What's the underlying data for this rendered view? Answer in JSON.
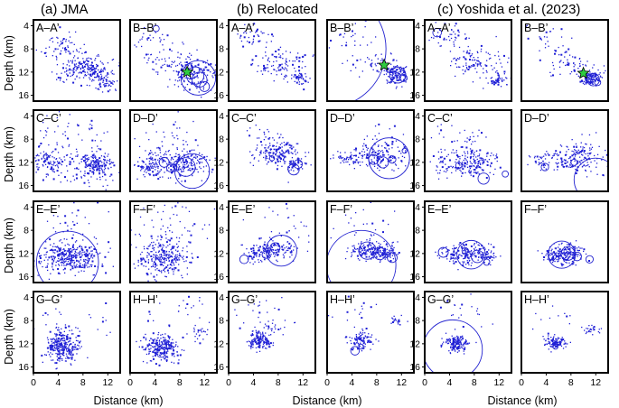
{
  "chart_data": {
    "type": "scatter",
    "columns": [
      {
        "title": "(a) JMA"
      },
      {
        "title": "(b) Relocated"
      },
      {
        "title": "(c) Yoshida et al. (2023)"
      }
    ],
    "rows": [
      {
        "left": "A–A’",
        "right": "B–B’"
      },
      {
        "left": "C–C’",
        "right": "D–D’"
      },
      {
        "left": "E–E’",
        "right": "F–F’"
      },
      {
        "left": "G–G’",
        "right": "H–H’"
      }
    ],
    "xlabel": "Distance (km)",
    "ylabel": "Depth (km)",
    "xlim": [
      0,
      14
    ],
    "ylim": [
      3,
      17
    ],
    "x_ticks": [
      0,
      4,
      8,
      12
    ],
    "y_ticks": [
      4,
      8,
      12,
      16
    ],
    "marker_color": "#1f1fd6",
    "star_color": "#2ecc40",
    "clusters": [
      [
        {
          "c": [
            {
              "x": 8.5,
              "y": 11.5,
              "sx": 2.2,
              "sy": 1.3,
              "n": 200
            },
            {
              "x": 4.5,
              "y": 7.5,
              "sx": 2,
              "sy": 1.2,
              "n": 60
            },
            {
              "x": 11,
              "y": 13.5,
              "sx": 1.2,
              "sy": 1,
              "n": 70
            }
          ],
          "r": [],
          "s": []
        },
        {
          "c": [
            {
              "x": 10,
              "y": 12.5,
              "sx": 1.8,
              "sy": 1.4,
              "n": 160
            },
            {
              "x": 6,
              "y": 10,
              "sx": 2.5,
              "sy": 1.5,
              "n": 60
            },
            {
              "x": 3,
              "y": 7,
              "sx": 1.5,
              "sy": 1.5,
              "n": 25
            }
          ],
          "r": [
            {
              "x": 11,
              "y": 13,
              "r": 2.8
            },
            {
              "x": 10.5,
              "y": 12.6,
              "r": 1.4
            },
            {
              "x": 11.2,
              "y": 13.3,
              "r": 1.2
            },
            {
              "x": 12,
              "y": 14.5,
              "r": 0.8
            },
            {
              "x": 4.2,
              "y": 4.5,
              "r": 0.5
            },
            {
              "x": 9.5,
              "y": 11.2,
              "r": 0.6
            }
          ],
          "s": [
            {
              "x": 9.2,
              "y": 12
            }
          ]
        },
        {
          "c": [
            {
              "x": 8.5,
              "y": 10.5,
              "sx": 2.3,
              "sy": 1.2,
              "n": 110
            },
            {
              "x": 4,
              "y": 6,
              "sx": 1.5,
              "sy": 1,
              "n": 40
            },
            {
              "x": 11.5,
              "y": 13,
              "sx": 1,
              "sy": 0.7,
              "n": 40
            }
          ],
          "r": [],
          "s": []
        },
        {
          "c": [
            {
              "x": 11,
              "y": 12.4,
              "sx": 0.9,
              "sy": 0.8,
              "n": 120
            },
            {
              "x": 8,
              "y": 10.5,
              "sx": 2,
              "sy": 1,
              "n": 50
            },
            {
              "x": 4,
              "y": 6,
              "sx": 2,
              "sy": 1.4,
              "n": 25
            }
          ],
          "r": [
            {
              "x": 11.4,
              "y": 12.5,
              "r": 1.3
            },
            {
              "x": 12.3,
              "y": 13,
              "r": 0.6
            },
            {
              "x": 0,
              "y": 8,
              "r": 9.5
            }
          ],
          "s": [
            {
              "x": 9.2,
              "y": 10.8
            }
          ]
        },
        {
          "c": [
            {
              "x": 8.5,
              "y": 10.5,
              "sx": 2.2,
              "sy": 1.3,
              "n": 110
            },
            {
              "x": 4,
              "y": 6,
              "sx": 1.5,
              "sy": 1,
              "n": 40
            },
            {
              "x": 11.8,
              "y": 13.3,
              "sx": 0.7,
              "sy": 0.6,
              "n": 45
            }
          ],
          "r": [
            {
              "x": 2,
              "y": 5.2,
              "r": 0.7
            }
          ],
          "s": []
        },
        {
          "c": [
            {
              "x": 11.2,
              "y": 13,
              "sx": 0.9,
              "sy": 0.7,
              "n": 100
            },
            {
              "x": 8,
              "y": 10.5,
              "sx": 2,
              "sy": 1,
              "n": 50
            },
            {
              "x": 4,
              "y": 6,
              "sx": 2,
              "sy": 1.4,
              "n": 25
            }
          ],
          "r": [
            {
              "x": 11.6,
              "y": 13.3,
              "r": 1
            },
            {
              "x": 12.3,
              "y": 13.8,
              "r": 0.5
            },
            {
              "x": 10.8,
              "y": 12.8,
              "r": 0.5
            }
          ],
          "s": [
            {
              "x": 10,
              "y": 12.2
            }
          ]
        }
      ],
      [
        {
          "c": [
            {
              "x": 10,
              "y": 12.5,
              "sx": 1.4,
              "sy": 1.2,
              "n": 200
            },
            {
              "x": 3.5,
              "y": 12,
              "sx": 2,
              "sy": 1.3,
              "n": 120
            },
            {
              "x": 6,
              "y": 8,
              "sx": 3.5,
              "sy": 3,
              "n": 60
            }
          ],
          "r": [
            {
              "x": 2,
              "y": 11,
              "r": 0.4
            }
          ],
          "s": []
        },
        {
          "c": [
            {
              "x": 9,
              "y": 12.5,
              "sx": 1.8,
              "sy": 1.3,
              "n": 180
            },
            {
              "x": 3.5,
              "y": 12.5,
              "sx": 1.5,
              "sy": 1,
              "n": 100
            },
            {
              "x": 7,
              "y": 9,
              "sx": 3,
              "sy": 2.5,
              "n": 60
            }
          ],
          "r": [
            {
              "x": 10,
              "y": 13.5,
              "r": 2.8
            },
            {
              "x": 9,
              "y": 12.8,
              "r": 1.5
            },
            {
              "x": 5.5,
              "y": 12,
              "r": 0.8
            },
            {
              "x": 6.5,
              "y": 13,
              "r": 0.6
            }
          ],
          "s": []
        },
        {
          "c": [
            {
              "x": 8,
              "y": 10.5,
              "sx": 1.8,
              "sy": 1,
              "n": 150
            },
            {
              "x": 6,
              "y": 9,
              "sx": 2,
              "sy": 1.5,
              "n": 50
            },
            {
              "x": 10.5,
              "y": 12.5,
              "sx": 1,
              "sy": 0.8,
              "n": 40
            }
          ],
          "r": [
            {
              "x": 10.5,
              "y": 13.2,
              "r": 0.9
            },
            {
              "x": 11.2,
              "y": 12.3,
              "r": 0.7
            },
            {
              "x": 7,
              "y": 11.3,
              "r": 0.4
            }
          ],
          "s": []
        },
        {
          "c": [
            {
              "x": 8,
              "y": 11,
              "sx": 2.2,
              "sy": 1.2,
              "n": 150
            },
            {
              "x": 3,
              "y": 11.5,
              "sx": 1,
              "sy": 0.6,
              "n": 30
            },
            {
              "x": 10,
              "y": 9,
              "sx": 1.5,
              "sy": 1.5,
              "n": 30
            }
          ],
          "r": [
            {
              "x": 10,
              "y": 11.3,
              "r": 3.3
            },
            {
              "x": 7.5,
              "y": 11.5,
              "r": 0.8
            },
            {
              "x": 9,
              "y": 12,
              "r": 0.9
            },
            {
              "x": 10.5,
              "y": 11.5,
              "r": 0.6
            },
            {
              "x": 12.5,
              "y": 10,
              "r": 0.4
            }
          ],
          "s": []
        },
        {
          "c": [
            {
              "x": 8,
              "y": 12,
              "sx": 2,
              "sy": 1.2,
              "n": 150
            },
            {
              "x": 3.5,
              "y": 12.5,
              "sx": 1.5,
              "sy": 1,
              "n": 40
            },
            {
              "x": 6,
              "y": 9,
              "sx": 2.5,
              "sy": 2,
              "n": 50
            }
          ],
          "r": [
            {
              "x": 9.5,
              "y": 14.8,
              "r": 0.9
            },
            {
              "x": 13,
              "y": 14,
              "r": 0.5
            },
            {
              "x": 5.5,
              "y": 12.5,
              "r": 0.5
            }
          ],
          "s": []
        },
        {
          "c": [
            {
              "x": 8,
              "y": 11.5,
              "sx": 2.2,
              "sy": 1.1,
              "n": 150
            },
            {
              "x": 3,
              "y": 12,
              "sx": 1,
              "sy": 0.7,
              "n": 30
            },
            {
              "x": 10,
              "y": 9.5,
              "sx": 1.5,
              "sy": 1.2,
              "n": 30
            }
          ],
          "r": [
            {
              "x": 12,
              "y": 15,
              "r": 3.5
            },
            {
              "x": 3.8,
              "y": 12.8,
              "r": 0.6
            },
            {
              "x": 8.5,
              "y": 12,
              "r": 0.5
            }
          ],
          "s": []
        }
      ],
      [
        {
          "c": [
            {
              "x": 6,
              "y": 12.5,
              "sx": 2.5,
              "sy": 1.3,
              "n": 350
            },
            {
              "x": 6,
              "y": 8,
              "sx": 3.5,
              "sy": 3,
              "n": 50
            }
          ],
          "r": [
            {
              "x": 5.5,
              "y": 13.5,
              "r": 5
            }
          ],
          "s": []
        },
        {
          "c": [
            {
              "x": 5.5,
              "y": 12.5,
              "sx": 2,
              "sy": 1.6,
              "n": 280
            },
            {
              "x": 7,
              "y": 7,
              "sx": 3.5,
              "sy": 3,
              "n": 60
            }
          ],
          "r": [],
          "s": []
        },
        {
          "c": [
            {
              "x": 7,
              "y": 11.5,
              "sx": 1.8,
              "sy": 0.9,
              "n": 150
            },
            {
              "x": 4.5,
              "y": 12.5,
              "sx": 1,
              "sy": 0.7,
              "n": 40
            },
            {
              "x": 9,
              "y": 8,
              "sx": 2.5,
              "sy": 2.5,
              "n": 30
            }
          ],
          "r": [
            {
              "x": 8.5,
              "y": 11.5,
              "r": 2.5
            },
            {
              "x": 2.5,
              "y": 13,
              "r": 0.7
            },
            {
              "x": 7.5,
              "y": 11,
              "r": 0.8
            },
            {
              "x": 6,
              "y": 12.2,
              "r": 0.6
            }
          ],
          "s": []
        },
        {
          "c": [
            {
              "x": 7,
              "y": 11.5,
              "sx": 1.8,
              "sy": 0.8,
              "n": 170
            },
            {
              "x": 9.5,
              "y": 12,
              "sx": 0.8,
              "sy": 0.6,
              "n": 40
            },
            {
              "x": 6,
              "y": 7.5,
              "sx": 2.5,
              "sy": 2,
              "n": 25
            }
          ],
          "r": [
            {
              "x": 5.5,
              "y": 14,
              "r": 5.6
            },
            {
              "x": 6.5,
              "y": 11.5,
              "r": 1.4
            },
            {
              "x": 8.5,
              "y": 12,
              "r": 1
            },
            {
              "x": 10.5,
              "y": 12.7,
              "r": 0.8
            }
          ],
          "s": []
        },
        {
          "c": [
            {
              "x": 7.5,
              "y": 12,
              "sx": 1.8,
              "sy": 1,
              "n": 150
            },
            {
              "x": 4,
              "y": 12,
              "sx": 1,
              "sy": 0.7,
              "n": 30
            },
            {
              "x": 10,
              "y": 12.5,
              "sx": 0.7,
              "sy": 0.6,
              "n": 25
            }
          ],
          "r": [
            {
              "x": 7.5,
              "y": 12.2,
              "r": 2.3
            },
            {
              "x": 3,
              "y": 11.8,
              "r": 0.8
            },
            {
              "x": 8.5,
              "y": 12.5,
              "r": 1
            },
            {
              "x": 10,
              "y": 13.5,
              "r": 0.5
            },
            {
              "x": 6.5,
              "y": 11.5,
              "r": 0.5
            }
          ],
          "s": []
        },
        {
          "c": [
            {
              "x": 7,
              "y": 12,
              "sx": 1.5,
              "sy": 0.8,
              "n": 170
            },
            {
              "x": 5,
              "y": 12.5,
              "sx": 0.8,
              "sy": 0.6,
              "n": 30
            }
          ],
          "r": [
            {
              "x": 6.5,
              "y": 12.2,
              "r": 2.2
            },
            {
              "x": 7.5,
              "y": 12,
              "r": 1.1
            },
            {
              "x": 9,
              "y": 12.5,
              "r": 0.7
            },
            {
              "x": 11,
              "y": 13,
              "r": 0.6
            },
            {
              "x": 5,
              "y": 12.5,
              "r": 0.6
            }
          ],
          "s": []
        }
      ],
      [
        {
          "c": [
            {
              "x": 4.5,
              "y": 12.5,
              "sx": 1.3,
              "sy": 1.4,
              "n": 300
            },
            {
              "x": 6,
              "y": 7.5,
              "sx": 4,
              "sy": 3,
              "n": 30
            }
          ],
          "r": [],
          "s": []
        },
        {
          "c": [
            {
              "x": 5,
              "y": 12.5,
              "sx": 1.4,
              "sy": 1.2,
              "n": 230
            },
            {
              "x": 11,
              "y": 10,
              "sx": 0.8,
              "sy": 0.8,
              "n": 25
            },
            {
              "x": 7,
              "y": 7,
              "sx": 3.5,
              "sy": 2.5,
              "n": 25
            }
          ],
          "r": [
            {
              "x": 5,
              "y": 13.6,
              "r": 0.7
            },
            {
              "x": 6.2,
              "y": 12.5,
              "r": 0.4
            }
          ],
          "s": []
        },
        {
          "c": [
            {
              "x": 5,
              "y": 11.5,
              "sx": 1,
              "sy": 0.8,
              "n": 150
            },
            {
              "x": 6,
              "y": 8,
              "sx": 3,
              "sy": 2.5,
              "n": 30
            },
            {
              "x": 7.5,
              "y": 9,
              "sx": 0.8,
              "sy": 0.8,
              "n": 15
            }
          ],
          "r": [
            {
              "x": 4.8,
              "y": 11.5,
              "r": 0.5
            }
          ],
          "s": []
        },
        {
          "c": [
            {
              "x": 5.5,
              "y": 11.5,
              "sx": 1,
              "sy": 0.8,
              "n": 100
            },
            {
              "x": 11,
              "y": 8,
              "sx": 0.6,
              "sy": 0.5,
              "n": 20
            },
            {
              "x": 5,
              "y": 6,
              "sx": 2.5,
              "sy": 1.5,
              "n": 15
            }
          ],
          "r": [
            {
              "x": 4.5,
              "y": 13.2,
              "r": 0.7
            },
            {
              "x": 5.5,
              "y": 12.5,
              "r": 0.4
            }
          ],
          "s": []
        },
        {
          "c": [
            {
              "x": 5,
              "y": 12,
              "sx": 1,
              "sy": 0.7,
              "n": 150
            },
            {
              "x": 6,
              "y": 8,
              "sx": 3,
              "sy": 2.5,
              "n": 25
            }
          ],
          "r": [
            {
              "x": 4.5,
              "y": 13,
              "r": 4.8
            },
            {
              "x": 5.5,
              "y": 12.3,
              "r": 0.5
            }
          ],
          "s": []
        },
        {
          "c": [
            {
              "x": 5.5,
              "y": 11.8,
              "sx": 0.9,
              "sy": 0.6,
              "n": 100
            },
            {
              "x": 11.5,
              "y": 9.5,
              "sx": 0.7,
              "sy": 0.4,
              "n": 25
            },
            {
              "x": 6,
              "y": 8,
              "sx": 2,
              "sy": 1.5,
              "n": 10
            }
          ],
          "r": [
            {
              "x": 5.5,
              "y": 12.5,
              "r": 0.4
            }
          ],
          "s": []
        }
      ]
    ]
  }
}
